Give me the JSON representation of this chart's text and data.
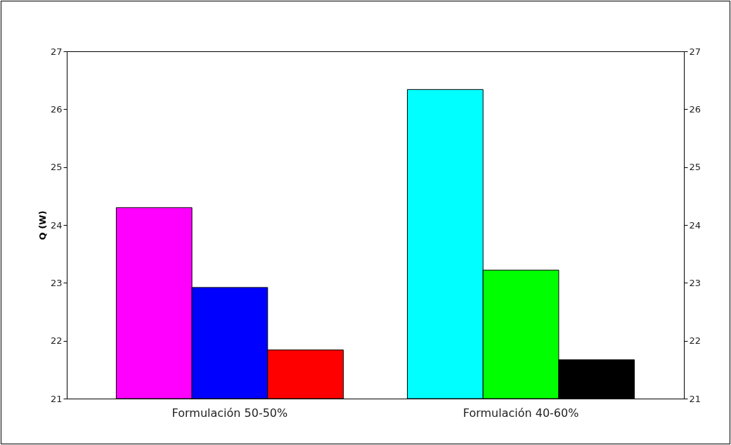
{
  "chart_data": {
    "type": "bar",
    "ylabel": "Q (W)",
    "categories": [
      "Formulación 50-50%",
      "Formulación 40-60%"
    ],
    "series": [
      {
        "colors": [
          "#ff00ff",
          "#00ffff"
        ],
        "values": [
          24.3,
          26.34
        ]
      },
      {
        "colors": [
          "#0000ff",
          "#00ff00"
        ],
        "values": [
          22.92,
          23.22
        ]
      },
      {
        "colors": [
          "#ff0000",
          "#000000"
        ],
        "values": [
          21.84,
          21.67
        ]
      }
    ],
    "ylim": [
      21,
      27
    ],
    "yticks": [
      21,
      22,
      23,
      24,
      25,
      26,
      27
    ],
    "y2lim": [
      21,
      27
    ],
    "y2ticks": [
      21,
      22,
      23,
      24,
      25,
      26,
      27
    ]
  }
}
